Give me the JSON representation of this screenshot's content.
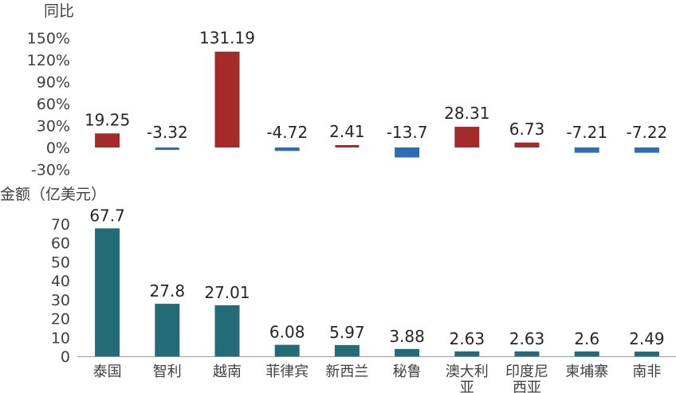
{
  "chart_data": [
    {
      "type": "bar",
      "title": "同比",
      "categories": [
        "泰国",
        "智利",
        "越南",
        "菲律宾",
        "新西兰",
        "秘鲁",
        "澳大利亚",
        "印度尼西亚",
        "柬埔寨",
        "南非"
      ],
      "values": [
        19.25,
        -3.32,
        131.19,
        -4.72,
        2.41,
        -13.7,
        28.31,
        6.73,
        -7.21,
        -7.22
      ],
      "value_labels": [
        "19.25",
        "-3.32",
        "131.19",
        "-4.72",
        "2.41",
        "-13.7",
        "28.31",
        "6.73",
        "-7.21",
        "-7.22"
      ],
      "ylim": [
        -30,
        150
      ],
      "yticks": [
        "150%",
        "120%",
        "90%",
        "60%",
        "30%",
        "0%",
        "-30%"
      ],
      "ytick_values": [
        150,
        120,
        90,
        60,
        30,
        0,
        -30
      ],
      "colors": {
        "positive": "#A52A2A",
        "negative": "#2E6DB4"
      },
      "grid": false
    },
    {
      "type": "bar",
      "title": "金额（亿美元）",
      "categories": [
        "泰国",
        "智利",
        "越南",
        "菲律宾",
        "新西兰",
        "秘鲁",
        "澳大利亚",
        "印度尼西亚",
        "柬埔寨",
        "南非"
      ],
      "category_lines": [
        [
          "泰国"
        ],
        [
          "智利"
        ],
        [
          "越南"
        ],
        [
          "菲律宾"
        ],
        [
          "新西兰"
        ],
        [
          "秘鲁"
        ],
        [
          "澳大利",
          "亚"
        ],
        [
          "印度尼",
          "西亚"
        ],
        [
          "柬埔寨"
        ],
        [
          "南非"
        ]
      ],
      "values": [
        67.7,
        27.8,
        27.01,
        6.08,
        5.97,
        3.88,
        2.63,
        2.63,
        2.6,
        2.49
      ],
      "value_labels": [
        "67.7",
        "27.8",
        "27.01",
        "6.08",
        "5.97",
        "3.88",
        "2.63",
        "2.63",
        "2.6",
        "2.49"
      ],
      "ylim": [
        0,
        70
      ],
      "yticks": [
        "70",
        "60",
        "50",
        "40",
        "30",
        "20",
        "10",
        "0"
      ],
      "ytick_values": [
        70,
        60,
        50,
        40,
        30,
        20,
        10,
        0
      ],
      "colors": {
        "bar": "#246B78"
      },
      "grid": false
    }
  ]
}
